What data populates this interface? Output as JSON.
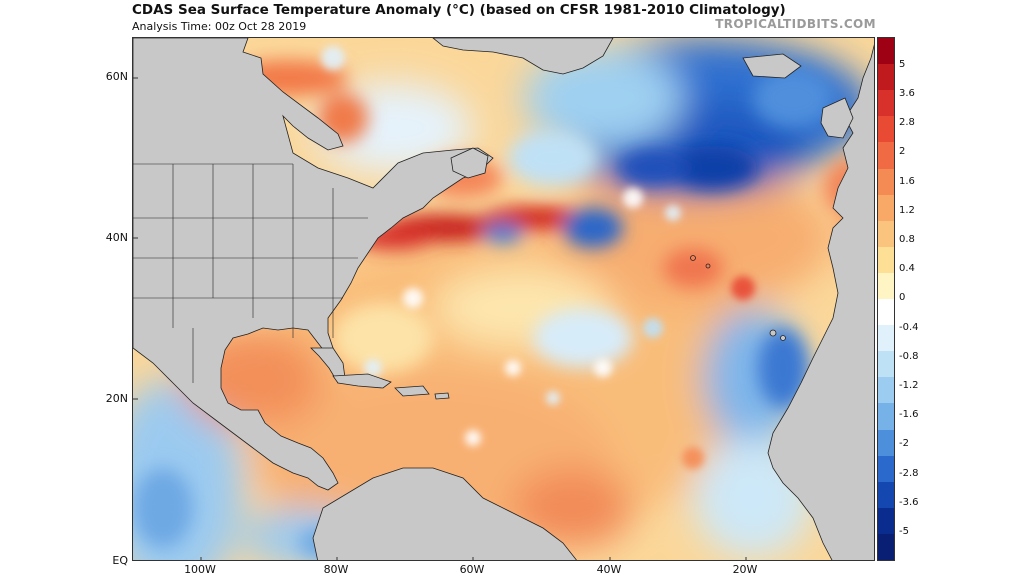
{
  "title": "CDAS Sea Surface Temperature Anomaly (°C) (based on CFSR 1981-2010 Climatology)",
  "subtitle": "Analysis Time: 00z Oct 28 2019",
  "credit": "TROPICALTIDBITS.COM",
  "axes": {
    "lat_labels": [
      "60N",
      "40N",
      "20N",
      "EQ"
    ],
    "lon_labels": [
      "100W",
      "80W",
      "60W",
      "40W",
      "20W"
    ]
  },
  "colorbar": {
    "labels": [
      "5",
      "3.6",
      "2.8",
      "2",
      "1.6",
      "1.2",
      "0.8",
      "0.4",
      "0",
      "-0.4",
      "-0.8",
      "-1.2",
      "-1.6",
      "-2",
      "-2.8",
      "-3.6",
      "-5"
    ],
    "colors": [
      "#9e0014",
      "#c01a1f",
      "#d8302a",
      "#e84a34",
      "#f06a44",
      "#f58b54",
      "#f8a968",
      "#fbc47e",
      "#fde096",
      "#fff4c4",
      "#ffffff",
      "#e1f1fb",
      "#bfe1f6",
      "#9ccdf0",
      "#76b2e8",
      "#4e8fdc",
      "#2b69cc",
      "#1447b0",
      "#0a2c8f",
      "#081f74"
    ]
  },
  "palette": {
    "land": "#c8c8c8",
    "border": "#222222"
  }
}
